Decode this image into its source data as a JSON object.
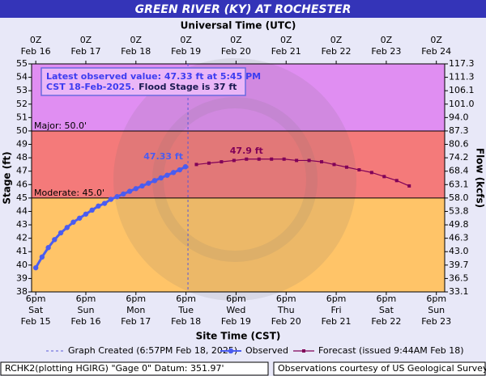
{
  "chart_data": {
    "type": "hydrograph",
    "title": "GREEN RIVER (KY) AT ROCHESTER",
    "x_label": "Site Time (CST)",
    "x2_label": "Universal Time (UTC)",
    "y_label": "Stage (ft)",
    "y2_label": "Flow (kcfs)",
    "xlim": [
      "2025-02-15T16:00",
      "2025-02-23T22:00"
    ],
    "xticks": [
      {
        "value": "2025-02-15T18:00",
        "label": [
          "6pm",
          "Sat",
          "Feb 15"
        ]
      },
      {
        "value": "2025-02-16T18:00",
        "label": [
          "6pm",
          "Sun",
          "Feb 16"
        ]
      },
      {
        "value": "2025-02-17T18:00",
        "label": [
          "6pm",
          "Mon",
          "Feb 17"
        ]
      },
      {
        "value": "2025-02-18T18:00",
        "label": [
          "6pm",
          "Tue",
          "Feb 18"
        ]
      },
      {
        "value": "2025-02-19T18:00",
        "label": [
          "6pm",
          "Wed",
          "Feb 19"
        ]
      },
      {
        "value": "2025-02-20T18:00",
        "label": [
          "6pm",
          "Thu",
          "Feb 20"
        ]
      },
      {
        "value": "2025-02-21T18:00",
        "label": [
          "6pm",
          "Fri",
          "Feb 21"
        ]
      },
      {
        "value": "2025-02-22T18:00",
        "label": [
          "6pm",
          "Sat",
          "Feb 22"
        ]
      },
      {
        "value": "2025-02-23T18:00",
        "label": [
          "6pm",
          "Sun",
          "Feb 23"
        ]
      }
    ],
    "x2lim": [
      "2025-02-15T22:00",
      "2025-02-24T04:00"
    ],
    "x2ticks": [
      {
        "value": "2025-02-16T00:00",
        "label": [
          "0Z",
          "Feb 16"
        ]
      },
      {
        "value": "2025-02-17T00:00",
        "label": [
          "0Z",
          "Feb 17"
        ]
      },
      {
        "value": "2025-02-18T00:00",
        "label": [
          "0Z",
          "Feb 18"
        ]
      },
      {
        "value": "2025-02-19T00:00",
        "label": [
          "0Z",
          "Feb 19"
        ]
      },
      {
        "value": "2025-02-20T00:00",
        "label": [
          "0Z",
          "Feb 20"
        ]
      },
      {
        "value": "2025-02-21T00:00",
        "label": [
          "0Z",
          "Feb 21"
        ]
      },
      {
        "value": "2025-02-22T00:00",
        "label": [
          "0Z",
          "Feb 22"
        ]
      },
      {
        "value": "2025-02-23T00:00",
        "label": [
          "0Z",
          "Feb 23"
        ]
      },
      {
        "value": "2025-02-24T00:00",
        "label": [
          "0Z",
          "Feb 24"
        ]
      }
    ],
    "ylim": [
      38,
      55
    ],
    "yticks": [
      38,
      39,
      40,
      41,
      42,
      43,
      44,
      45,
      46,
      47,
      48,
      49,
      50,
      51,
      52,
      53,
      54,
      55
    ],
    "y2ticks": [
      33.1,
      36.5,
      39.7,
      {
        "value": 43,
        "label": "43.0"
      },
      46.3,
      49.8,
      53.8,
      {
        "value": 58,
        "label": "58.0"
      },
      63.1,
      68.4,
      74.2,
      80.6,
      87.3,
      {
        "value": 94,
        "label": "94.0"
      },
      {
        "value": 101,
        "label": "101.0"
      },
      106.1,
      111.3,
      117.3
    ],
    "base_color": "#ffc468",
    "thresholds": [
      {
        "label": "Moderate: 45.0'",
        "value": 45,
        "color": "#f47a7a"
      },
      {
        "label": "Major: 50.0'",
        "value": 50,
        "color": "#e08ef2"
      }
    ],
    "annotation": {
      "lines": [
        "Latest observed value: 47.33 ft at 5:45 PM",
        "CST 18-Feb-2025."
      ],
      "flood_stage": "Flood Stage is 37 ft"
    },
    "created": {
      "label": "Graph Created (6:57PM Feb 18, 2025)",
      "x": "2025-02-18T18:57"
    },
    "series": [
      {
        "name": "Observed",
        "color": "#4a5cf0",
        "x": [
          "2025-02-15T18:00",
          "2025-02-15T21:00",
          "2025-02-16T00:00",
          "2025-02-16T03:00",
          "2025-02-16T06:00",
          "2025-02-16T09:00",
          "2025-02-16T12:00",
          "2025-02-16T15:00",
          "2025-02-16T18:00",
          "2025-02-16T21:00",
          "2025-02-17T00:00",
          "2025-02-17T03:00",
          "2025-02-17T06:00",
          "2025-02-17T09:00",
          "2025-02-17T12:00",
          "2025-02-17T15:00",
          "2025-02-17T18:00",
          "2025-02-17T21:00",
          "2025-02-18T00:00",
          "2025-02-18T03:00",
          "2025-02-18T06:00",
          "2025-02-18T09:00",
          "2025-02-18T12:00",
          "2025-02-18T15:00",
          "2025-02-18T17:45"
        ],
        "values": [
          39.8,
          40.6,
          41.3,
          41.9,
          42.4,
          42.8,
          43.2,
          43.5,
          43.8,
          44.1,
          44.4,
          44.6,
          44.9,
          45.1,
          45.3,
          45.5,
          45.7,
          45.9,
          46.1,
          46.3,
          46.5,
          46.7,
          46.9,
          47.1,
          47.33
        ],
        "value_labels": [
          null,
          null,
          null,
          null,
          null,
          null,
          null,
          null,
          null,
          null,
          null,
          null,
          null,
          null,
          null,
          null,
          null,
          null,
          null,
          null,
          null,
          null,
          null,
          null,
          "47.33 ft"
        ]
      },
      {
        "name": "Forecast (issued 9:44AM Feb 18)",
        "color": "#800058",
        "x": [
          "2025-02-18T23:00",
          "2025-02-19T05:00",
          "2025-02-19T11:00",
          "2025-02-19T17:00",
          "2025-02-19T23:00",
          "2025-02-20T05:00",
          "2025-02-20T11:00",
          "2025-02-20T17:00",
          "2025-02-20T23:00",
          "2025-02-21T05:00",
          "2025-02-21T11:00",
          "2025-02-21T17:00",
          "2025-02-21T23:00",
          "2025-02-22T05:00",
          "2025-02-22T11:00",
          "2025-02-22T17:00",
          "2025-02-22T23:00",
          "2025-02-23T05:00"
        ],
        "values": [
          47.5,
          47.6,
          47.7,
          47.8,
          47.9,
          47.9,
          47.9,
          47.9,
          47.8,
          47.8,
          47.7,
          47.5,
          47.3,
          47.1,
          46.9,
          46.6,
          46.3,
          45.9
        ],
        "value_labels": [
          null,
          null,
          null,
          null,
          "47.9 ft",
          null,
          null,
          null,
          null,
          null,
          null,
          null,
          null,
          null,
          null,
          null,
          null,
          null
        ]
      }
    ],
    "footer_left": "RCHK2(plotting HGIRG) \"Gage 0\" Datum: 351.97'",
    "footer_right": "Observations courtesy of US Geological Survey"
  }
}
